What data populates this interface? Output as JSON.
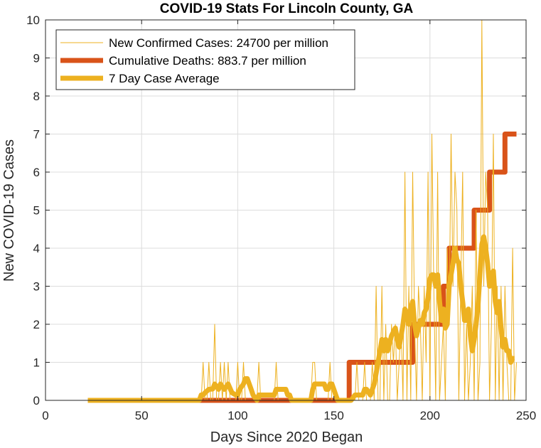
{
  "chart_data": {
    "type": "line",
    "title": "COVID-19 Stats For Lincoln County, GA",
    "xlabel": "Days Since 2020 Began",
    "ylabel": "New COVID-19 Cases",
    "xlim": [
      0,
      250
    ],
    "ylim": [
      0,
      10
    ],
    "xticks": [
      0,
      50,
      100,
      150,
      200,
      250
    ],
    "yticks": [
      0,
      1,
      2,
      3,
      4,
      5,
      6,
      7,
      8,
      9,
      10
    ],
    "grid": true,
    "legend_position": "top-left",
    "series": [
      {
        "name": "New Confirmed Cases: 24700 per million",
        "color": "#EDB120",
        "style": "thin",
        "points": [
          [
            22,
            0
          ],
          [
            80,
            0
          ],
          [
            81,
            0
          ],
          [
            82,
            1
          ],
          [
            83,
            0
          ],
          [
            84,
            0
          ],
          [
            85,
            1
          ],
          [
            86,
            0
          ],
          [
            87,
            0
          ],
          [
            88,
            2
          ],
          [
            89,
            0
          ],
          [
            90,
            0
          ],
          [
            91,
            1
          ],
          [
            92,
            0
          ],
          [
            93,
            1
          ],
          [
            94,
            0
          ],
          [
            95,
            1
          ],
          [
            96,
            0
          ],
          [
            97,
            0
          ],
          [
            98,
            0
          ],
          [
            99,
            0
          ],
          [
            100,
            1
          ],
          [
            101,
            0
          ],
          [
            102,
            0
          ],
          [
            103,
            1
          ],
          [
            104,
            0
          ],
          [
            105,
            0
          ],
          [
            106,
            0
          ],
          [
            107,
            0
          ],
          [
            108,
            0
          ],
          [
            109,
            0
          ],
          [
            110,
            0
          ],
          [
            111,
            1
          ],
          [
            112,
            0
          ],
          [
            113,
            0
          ],
          [
            114,
            0
          ],
          [
            115,
            0
          ],
          [
            116,
            0
          ],
          [
            117,
            0
          ],
          [
            118,
            0
          ],
          [
            119,
            0
          ],
          [
            120,
            1
          ],
          [
            121,
            0
          ],
          [
            122,
            0
          ],
          [
            123,
            0
          ],
          [
            124,
            0
          ],
          [
            125,
            0
          ],
          [
            126,
            0
          ],
          [
            127,
            0
          ],
          [
            128,
            0
          ],
          [
            138,
            0
          ],
          [
            139,
            1
          ],
          [
            140,
            1
          ],
          [
            141,
            0
          ],
          [
            142,
            0
          ],
          [
            143,
            0
          ],
          [
            144,
            0
          ],
          [
            145,
            0
          ],
          [
            146,
            0
          ],
          [
            147,
            0
          ],
          [
            148,
            1
          ],
          [
            149,
            0
          ],
          [
            150,
            0
          ],
          [
            151,
            0
          ],
          [
            152,
            0
          ],
          [
            159,
            0
          ],
          [
            160,
            0
          ],
          [
            161,
            0
          ],
          [
            162,
            1
          ],
          [
            163,
            0
          ],
          [
            164,
            0
          ],
          [
            165,
            0
          ],
          [
            166,
            1
          ],
          [
            167,
            0
          ],
          [
            168,
            0
          ],
          [
            169,
            0
          ],
          [
            170,
            1
          ],
          [
            171,
            0
          ],
          [
            172,
            3
          ],
          [
            173,
            0
          ],
          [
            174,
            0
          ],
          [
            175,
            3
          ],
          [
            176,
            0
          ],
          [
            177,
            2
          ],
          [
            178,
            0
          ],
          [
            179,
            0
          ],
          [
            180,
            2
          ],
          [
            181,
            1
          ],
          [
            182,
            2
          ],
          [
            183,
            0
          ],
          [
            184,
            1
          ],
          [
            185,
            2
          ],
          [
            186,
            0
          ],
          [
            187,
            6
          ],
          [
            188,
            0
          ],
          [
            189,
            3
          ],
          [
            190,
            0
          ],
          [
            191,
            6
          ],
          [
            192,
            2
          ],
          [
            193,
            0
          ],
          [
            194,
            3
          ],
          [
            195,
            2
          ],
          [
            196,
            0
          ],
          [
            197,
            3
          ],
          [
            198,
            1
          ],
          [
            199,
            6
          ],
          [
            200,
            0
          ],
          [
            201,
            7
          ],
          [
            202,
            3
          ],
          [
            203,
            0
          ],
          [
            204,
            6
          ],
          [
            205,
            0
          ],
          [
            206,
            1
          ],
          [
            207,
            2
          ],
          [
            208,
            0
          ],
          [
            209,
            4
          ],
          [
            210,
            2
          ],
          [
            211,
            7
          ],
          [
            212,
            3
          ],
          [
            213,
            6
          ],
          [
            214,
            5
          ],
          [
            215,
            0
          ],
          [
            216,
            3
          ],
          [
            217,
            6
          ],
          [
            218,
            0
          ],
          [
            219,
            2
          ],
          [
            220,
            0
          ],
          [
            221,
            1
          ],
          [
            222,
            3
          ],
          [
            223,
            0
          ],
          [
            224,
            5
          ],
          [
            225,
            0
          ],
          [
            226,
            1
          ],
          [
            227,
            10
          ],
          [
            228,
            3
          ],
          [
            229,
            6
          ],
          [
            230,
            5
          ],
          [
            231,
            0
          ],
          [
            232,
            2
          ],
          [
            233,
            7
          ],
          [
            234,
            0
          ],
          [
            235,
            3
          ],
          [
            236,
            0
          ],
          [
            237,
            3
          ],
          [
            238,
            0
          ],
          [
            239,
            3
          ],
          [
            240,
            1
          ],
          [
            241,
            0
          ],
          [
            242,
            0
          ],
          [
            243,
            4
          ],
          [
            244,
            0
          ],
          [
            245,
            1
          ]
        ]
      },
      {
        "name": "Cumulative Deaths: 883.7 per million",
        "color": "#D95319",
        "style": "thick",
        "points": [
          [
            22,
            0
          ],
          [
            158,
            0
          ],
          [
            158,
            1
          ],
          [
            191,
            1
          ],
          [
            191,
            2
          ],
          [
            207,
            2
          ],
          [
            207,
            3
          ],
          [
            210,
            3
          ],
          [
            210,
            4
          ],
          [
            223,
            4
          ],
          [
            223,
            5
          ],
          [
            231,
            5
          ],
          [
            231,
            6
          ],
          [
            239,
            6
          ],
          [
            239,
            7
          ],
          [
            245,
            7
          ]
        ]
      },
      {
        "name": "7 Day Case Average",
        "color": "#EDB120",
        "style": "thick",
        "points": [
          [
            22,
            0
          ],
          [
            80,
            0
          ],
          [
            81,
            0.14
          ],
          [
            82,
            0.14
          ],
          [
            83,
            0.2
          ],
          [
            85,
            0.29
          ],
          [
            87,
            0.3
          ],
          [
            88,
            0.43
          ],
          [
            90,
            0.29
          ],
          [
            91,
            0.43
          ],
          [
            93,
            0.29
          ],
          [
            95,
            0.43
          ],
          [
            97,
            0.2
          ],
          [
            99,
            0.14
          ],
          [
            100,
            0.14
          ],
          [
            101,
            0.29
          ],
          [
            103,
            0.43
          ],
          [
            104,
            0.57
          ],
          [
            105,
            0.57
          ],
          [
            106,
            0.43
          ],
          [
            107,
            0.29
          ],
          [
            108,
            0.14
          ],
          [
            110,
            0
          ],
          [
            111,
            0.14
          ],
          [
            113,
            0.14
          ],
          [
            115,
            0.14
          ],
          [
            117,
            0.14
          ],
          [
            119,
            0.14
          ],
          [
            120,
            0.29
          ],
          [
            121,
            0.29
          ],
          [
            123,
            0.29
          ],
          [
            124,
            0.29
          ],
          [
            125,
            0.29
          ],
          [
            126,
            0.14
          ],
          [
            127,
            0.14
          ],
          [
            128,
            0
          ],
          [
            138,
            0
          ],
          [
            139,
            0.29
          ],
          [
            140,
            0.43
          ],
          [
            142,
            0.43
          ],
          [
            145,
            0.43
          ],
          [
            146,
            0.29
          ],
          [
            147,
            0.29
          ],
          [
            148,
            0.43
          ],
          [
            149,
            0.43
          ],
          [
            150,
            0.29
          ],
          [
            151,
            0.14
          ],
          [
            152,
            0
          ],
          [
            159,
            0
          ],
          [
            161,
            0.14
          ],
          [
            163,
            0.14
          ],
          [
            165,
            0.14
          ],
          [
            166,
            0.29
          ],
          [
            167,
            0.29
          ],
          [
            169,
            0.14
          ],
          [
            170,
            0.29
          ],
          [
            171,
            0.43
          ],
          [
            172,
            0.71
          ],
          [
            173,
            1.0
          ],
          [
            174,
            1.3
          ],
          [
            175,
            1.6
          ],
          [
            176,
            1.3
          ],
          [
            177,
            1.6
          ],
          [
            178,
            1.3
          ],
          [
            179,
            1.5
          ],
          [
            180,
            1.7
          ],
          [
            182,
            1.9
          ],
          [
            183,
            1.6
          ],
          [
            184,
            1.4
          ],
          [
            185,
            1.7
          ],
          [
            186,
            2.0
          ],
          [
            187,
            2.4
          ],
          [
            188,
            2.3
          ],
          [
            189,
            2.0
          ],
          [
            190,
            2.4
          ],
          [
            191,
            2.6
          ],
          [
            192,
            2.0
          ],
          [
            193,
            1.7
          ],
          [
            194,
            1.9
          ],
          [
            195,
            2.1
          ],
          [
            196,
            2.0
          ],
          [
            197,
            2.3
          ],
          [
            198,
            2.4
          ],
          [
            199,
            2.7
          ],
          [
            200,
            3.2
          ],
          [
            201,
            3.3
          ],
          [
            202,
            3.3
          ],
          [
            203,
            3.0
          ],
          [
            204,
            3.3
          ],
          [
            205,
            2.6
          ],
          [
            206,
            2.1
          ],
          [
            207,
            2.4
          ],
          [
            208,
            1.9
          ],
          [
            209,
            2.0
          ],
          [
            210,
            3.0
          ],
          [
            211,
            3.3
          ],
          [
            212,
            3.6
          ],
          [
            213,
            4.0
          ],
          [
            214,
            3.7
          ],
          [
            215,
            3.6
          ],
          [
            216,
            3.0
          ],
          [
            217,
            2.6
          ],
          [
            218,
            2.1
          ],
          [
            219,
            2.1
          ],
          [
            220,
            2.4
          ],
          [
            221,
            1.7
          ],
          [
            222,
            1.3
          ],
          [
            223,
            1.6
          ],
          [
            224,
            2.0
          ],
          [
            225,
            2.5
          ],
          [
            226,
            3.3
          ],
          [
            227,
            4.1
          ],
          [
            228,
            4.3
          ],
          [
            229,
            4.0
          ],
          [
            230,
            3.6
          ],
          [
            231,
            3.0
          ],
          [
            232,
            3.3
          ],
          [
            233,
            3.4
          ],
          [
            234,
            2.6
          ],
          [
            235,
            2.3
          ],
          [
            236,
            2.6
          ],
          [
            237,
            1.9
          ],
          [
            238,
            1.4
          ],
          [
            239,
            1.6
          ],
          [
            240,
            1.3
          ],
          [
            241,
            1.3
          ],
          [
            242,
            1.0
          ],
          [
            243,
            1.1
          ],
          [
            244,
            1.1
          ]
        ]
      }
    ]
  }
}
